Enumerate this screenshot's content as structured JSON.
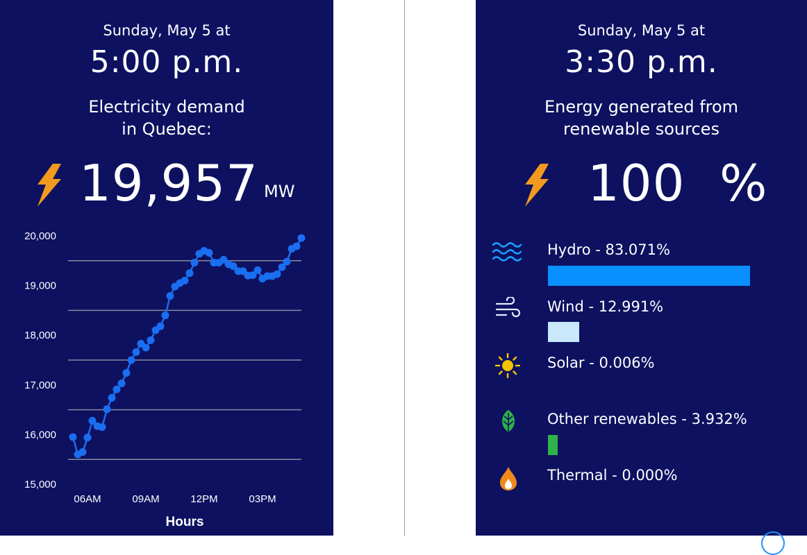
{
  "demand_panel": {
    "date_label": "Sunday, May 5 at",
    "time_label": "5:00 p.m.",
    "subtitle_line1": "Electricity demand",
    "subtitle_line2": "in Quebec:",
    "value": "19,957",
    "unit": "MW",
    "icon": "lightning-bolt-icon"
  },
  "chart_data": {
    "type": "line",
    "xlabel": "Hours",
    "ylabel": "",
    "ylim": [
      15000,
      20000
    ],
    "y_ticks": [
      "20,000",
      "19,000",
      "18,000",
      "17,000",
      "16,000",
      "15,000"
    ],
    "x_tick_labels": [
      "06AM",
      "09AM",
      "12PM",
      "03PM"
    ],
    "x_tick_hours": [
      6,
      9,
      12,
      15
    ],
    "grid": true,
    "series": [
      {
        "color": "#1a6ef0",
        "x": [
          5.25,
          5.5,
          5.75,
          6.0,
          6.25,
          6.5,
          6.75,
          7.0,
          7.25,
          7.5,
          7.75,
          8.0,
          8.25,
          8.5,
          8.75,
          9.0,
          9.25,
          9.5,
          9.75,
          10.0,
          10.25,
          10.5,
          10.75,
          11.0,
          11.25,
          11.5,
          11.75,
          12.0,
          12.25,
          12.5,
          12.75,
          13.0,
          13.25,
          13.5,
          13.75,
          14.0,
          14.25,
          14.5,
          14.75,
          15.0,
          15.25,
          15.5,
          15.75,
          16.0,
          16.25,
          16.5,
          16.75,
          17.0
        ],
        "values": [
          15950,
          15600,
          15650,
          15940,
          16280,
          16170,
          16150,
          16510,
          16740,
          16910,
          17030,
          17240,
          17500,
          17660,
          17830,
          17750,
          17900,
          18100,
          18180,
          18400,
          18790,
          18980,
          19050,
          19100,
          19250,
          19460,
          19640,
          19700,
          19660,
          19460,
          19460,
          19520,
          19430,
          19390,
          19290,
          19290,
          19200,
          19210,
          19310,
          19140,
          19190,
          19190,
          19230,
          19370,
          19480,
          19740,
          19790,
          19957
        ]
      }
    ]
  },
  "renewables_panel": {
    "date_label": "Sunday, May 5 at",
    "time_label": "3:30 p.m.",
    "subtitle_line1": "Energy generated from",
    "subtitle_line2": "renewable sources",
    "percent_value": "100",
    "percent_sign": "%",
    "icon": "lightning-bolt-icon",
    "sources": [
      {
        "label": "Hydro - 83.071%",
        "share": 83.071,
        "bar_color": "#0a8fff",
        "icon": "water-waves-icon"
      },
      {
        "label": "Wind - 12.991%",
        "share": 12.991,
        "bar_color": "#c9e8fb",
        "icon": "wind-icon"
      },
      {
        "label": "Solar - 0.006%",
        "share": 0.006,
        "bar_color": "#f5c400",
        "icon": "sun-icon"
      },
      {
        "label": "Other renewables - 3.932%",
        "share": 3.932,
        "bar_color": "#2fb24a",
        "icon": "leaf-icon"
      },
      {
        "label": "Thermal - 0.000%",
        "share": 0.0,
        "bar_color": "#f08a1c",
        "icon": "flame-icon"
      }
    ]
  },
  "colors": {
    "panel_background": "#0d1160",
    "text": "#ffffff",
    "chart_line": "#1a6ef0",
    "gridline": "#8a8a9a",
    "bolt": "#f39a1e"
  }
}
